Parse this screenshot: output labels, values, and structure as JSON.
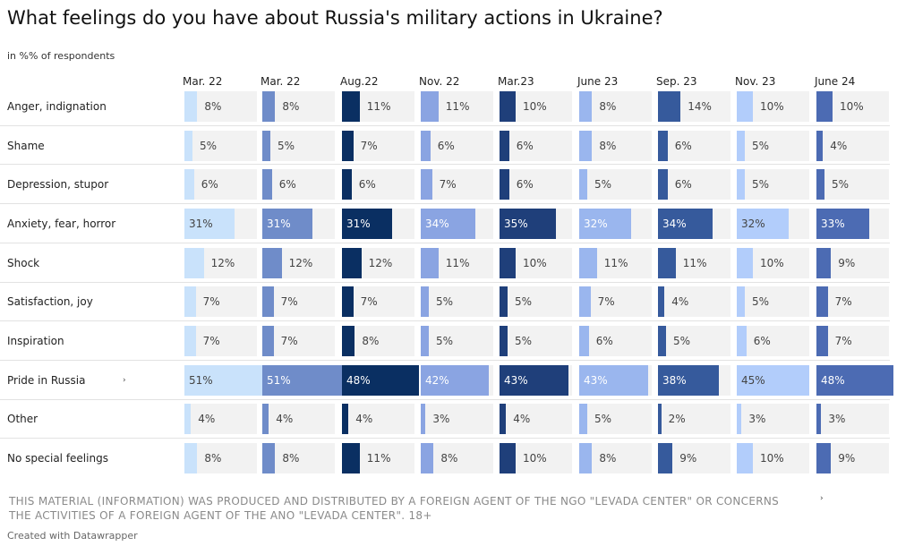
{
  "chart_data": {
    "type": "bar",
    "title": "What feelings do you have about Russia's military actions in Ukraine?",
    "subtitle": "in %% of respondents",
    "unit": "%",
    "categories": [
      "Anger, indignation",
      "Shame",
      "Depression, stupor",
      "Anxiety, fear, horror",
      "Shock",
      "Satisfaction, joy",
      "Inspiration",
      "Pride in Russia",
      "Other",
      "No special feelings"
    ],
    "series": [
      {
        "name": "Mar. 22",
        "color": "#c9e2fb",
        "values": [
          8,
          5,
          6,
          31,
          12,
          7,
          7,
          51,
          4,
          8
        ]
      },
      {
        "name": "Mar. 22",
        "color": "#6f8cc9",
        "values": [
          8,
          5,
          6,
          31,
          12,
          7,
          7,
          51,
          4,
          8
        ]
      },
      {
        "name": "Aug.22",
        "color": "#0a2f62",
        "values": [
          11,
          7,
          6,
          31,
          12,
          7,
          8,
          48,
          4,
          11
        ]
      },
      {
        "name": "Nov. 22",
        "color": "#8aa4e2",
        "values": [
          11,
          6,
          7,
          34,
          11,
          5,
          5,
          42,
          3,
          8
        ]
      },
      {
        "name": "Mar.23",
        "color": "#1f3f7a",
        "values": [
          10,
          6,
          6,
          35,
          10,
          5,
          5,
          43,
          4,
          10
        ]
      },
      {
        "name": "June 23",
        "color": "#9ab6ee",
        "values": [
          8,
          8,
          5,
          32,
          11,
          7,
          6,
          43,
          5,
          8
        ]
      },
      {
        "name": "Sep. 23",
        "color": "#365a9c",
        "values": [
          14,
          6,
          6,
          34,
          11,
          4,
          5,
          38,
          2,
          9
        ]
      },
      {
        "name": "Nov. 23",
        "color": "#b2cdfb",
        "values": [
          10,
          5,
          5,
          32,
          10,
          5,
          6,
          45,
          3,
          10
        ]
      },
      {
        "name": "June 24",
        "color": "#4c6bb3",
        "values": [
          10,
          4,
          5,
          33,
          9,
          7,
          7,
          48,
          3,
          9
        ]
      }
    ],
    "xlim": [
      0,
      55
    ]
  },
  "markers": {
    "pride_row": "›",
    "footer_right": "›"
  },
  "footer": {
    "notice": "THIS MATERIAL (INFORMATION) WAS PRODUCED AND DISTRIBUTED BY A FOREIGN AGENT OF THE NGO \"LEVADA CENTER\" OR CONCERNS THE ACTIVITIES OF A FOREIGN AGENT OF THE ANO \"LEVADA CENTER\". 18+",
    "credit": "Created with Datawrapper"
  }
}
